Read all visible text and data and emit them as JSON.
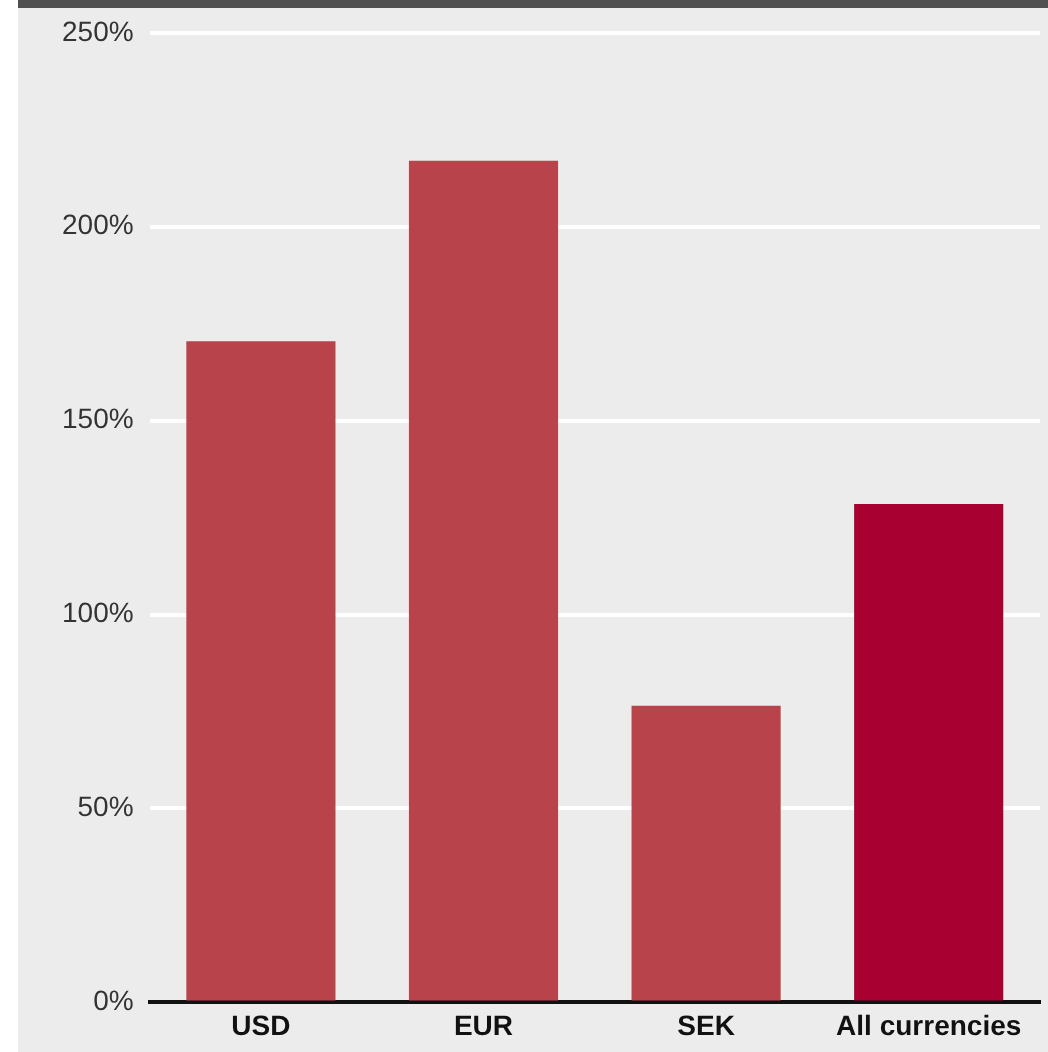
{
  "chart_data": {
    "type": "bar",
    "categories": [
      "USD",
      "EUR",
      "SEK",
      "All currencies"
    ],
    "values": [
      170.5,
      217,
      76.5,
      128.5
    ],
    "colors": [
      "#b9434b",
      "#b9434b",
      "#b9434b",
      "#a80030"
    ],
    "ylim": [
      0,
      250
    ],
    "yticks": [
      {
        "value": 0,
        "label": "0%"
      },
      {
        "value": 50,
        "label": "50%"
      },
      {
        "value": 100,
        "label": "100%"
      },
      {
        "value": 150,
        "label": "150%"
      },
      {
        "value": 200,
        "label": "200%"
      },
      {
        "value": 250,
        "label": "250%"
      }
    ],
    "grid": "y",
    "legend": false
  }
}
